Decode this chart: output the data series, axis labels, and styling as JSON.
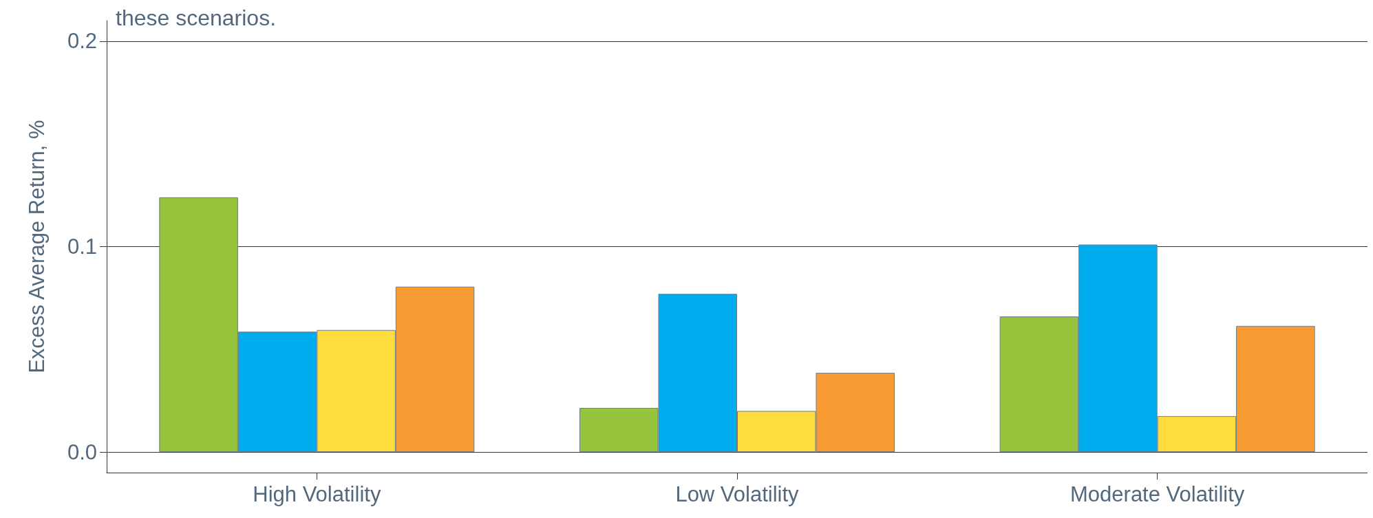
{
  "chart_data": {
    "type": "bar",
    "ylabel": "Excess Average Return, %",
    "annotations": [
      "these scenarios."
    ],
    "categories": [
      "High Volatility",
      "Low Volatility",
      "Moderate Volatility"
    ],
    "series": [
      {
        "color": "#96c43d",
        "values": [
          0.124,
          0.0215,
          0.066
        ]
      },
      {
        "color": "#00adee",
        "values": [
          0.0586,
          0.077,
          0.101
        ]
      },
      {
        "color": "#fedc3d",
        "values": [
          0.0594,
          0.02,
          0.0175
        ]
      },
      {
        "color": "#f99b33",
        "values": [
          0.0805,
          0.0386,
          0.0614
        ]
      }
    ],
    "ylim": [
      -0.01,
      0.21
    ],
    "yticks": [
      {
        "value": 0,
        "label": "0.0"
      },
      {
        "value": 0.1,
        "label": "0.1"
      },
      {
        "value": 0.2,
        "label": "0.2"
      }
    ],
    "grid": "y"
  }
}
